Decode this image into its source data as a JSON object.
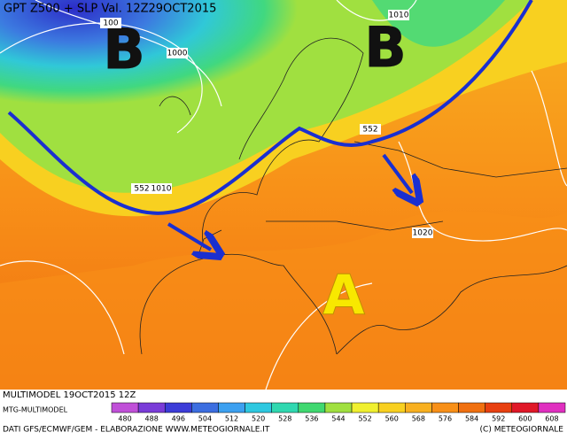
{
  "header": {
    "title": "GPT Z500 + SLP Val. 12Z29OCT2015"
  },
  "map": {
    "labels": [
      "B",
      "B",
      "A"
    ],
    "contour_labels": [
      100,
      1000,
      1010,
      552,
      552,
      1010,
      1020
    ]
  },
  "footer": {
    "run": "MULTIMODEL 19OCT2015 12Z",
    "model": "MTG-MULTIMODEL",
    "source": "DATI GFS/ECMWF/GEM - ELABORAZIONE WWW.METEOGIORNALE.IT",
    "copyright": "(C) METEOGIORNALE"
  },
  "scale": {
    "values": [
      480,
      488,
      496,
      504,
      512,
      520,
      528,
      536,
      544,
      552,
      560,
      568,
      576,
      584,
      592,
      600,
      608
    ],
    "colors": [
      "#c050d8",
      "#7a3cd8",
      "#3c3cd8",
      "#3c6ee0",
      "#3ca0f0",
      "#2ec8e0",
      "#30d8b0",
      "#40d870",
      "#a0e040",
      "#f0f030",
      "#f8d020",
      "#f8b020",
      "#f89018",
      "#f07010",
      "#e84010",
      "#e01828",
      "#e030c0"
    ]
  }
}
